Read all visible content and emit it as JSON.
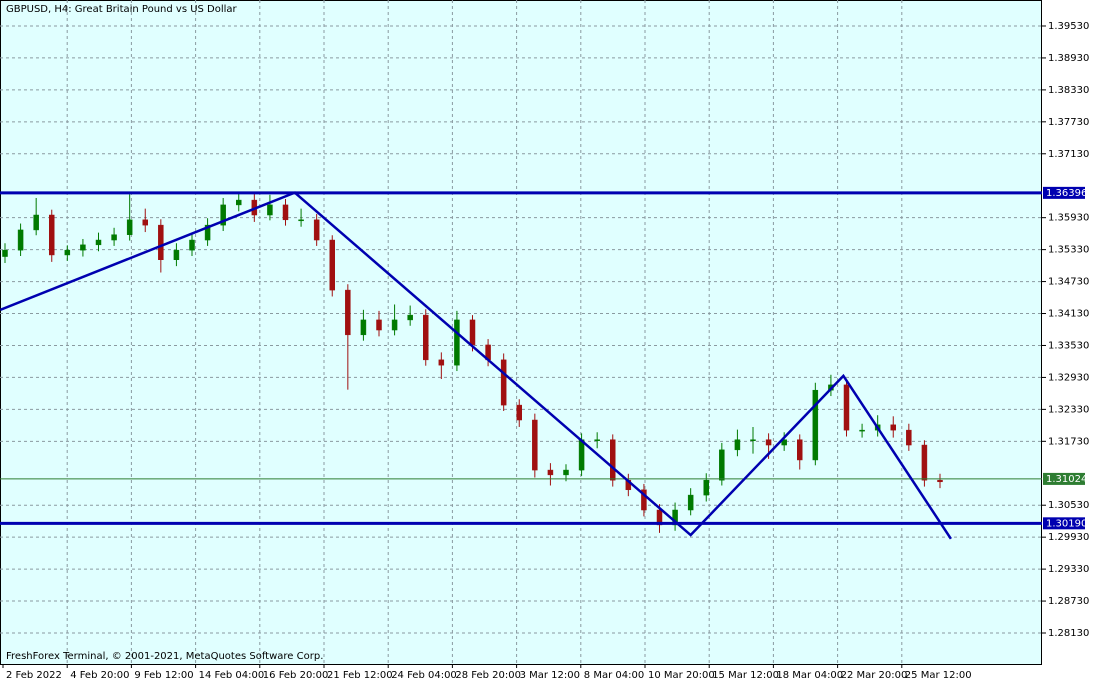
{
  "chart_data": {
    "type": "candlestick",
    "title": "GBPUSD, H4: Great Britain Pound vs US Dollar",
    "footer": "FreshForex Terminal, © 2001-2021, MetaQuotes Software Corp.",
    "background": "#e0ffff",
    "up_color": "#007a00",
    "down_color": "#a01010",
    "grid": true,
    "time_labels": [
      "2 Feb 2022",
      "4 Feb 20:00",
      "9 Feb 12:00",
      "14 Feb 04:00",
      "16 Feb 20:00",
      "21 Feb 12:00",
      "24 Feb 04:00",
      "28 Feb 20:00",
      "3 Mar 12:00",
      "8 Mar 04:00",
      "10 Mar 20:00",
      "15 Mar 12:00",
      "18 Mar 04:00",
      "22 Mar 20:00",
      "25 Mar 12:00"
    ],
    "ylim": [
      1.27548,
      1.40018
    ],
    "yticks": [
      {
        "value": 1.3953,
        "label": "1.39530"
      },
      {
        "value": 1.3893,
        "label": "1.38930"
      },
      {
        "value": 1.3833,
        "label": "1.38330"
      },
      {
        "value": 1.3773,
        "label": "1.37730"
      },
      {
        "value": 1.3713,
        "label": "1.37130"
      },
      {
        "value": 1.3593,
        "label": "1.35930"
      },
      {
        "value": 1.3533,
        "label": "1.35330"
      },
      {
        "value": 1.3473,
        "label": "1.34730"
      },
      {
        "value": 1.3413,
        "label": "1.34130"
      },
      {
        "value": 1.3353,
        "label": "1.33530"
      },
      {
        "value": 1.3293,
        "label": "1.32930"
      },
      {
        "value": 1.3233,
        "label": "1.32330"
      },
      {
        "value": 1.3173,
        "label": "1.31730"
      },
      {
        "value": 1.3053,
        "label": "1.30530"
      },
      {
        "value": 1.2993,
        "label": "1.29930"
      },
      {
        "value": 1.2933,
        "label": "1.29330"
      },
      {
        "value": 1.2873,
        "label": "1.28730"
      },
      {
        "value": 1.2813,
        "label": "1.28130"
      }
    ],
    "open": [
      1.352,
      1.3532,
      1.357,
      1.3598,
      1.3523,
      1.3532,
      1.3542,
      1.3551,
      1.3561,
      1.3589,
      1.3579,
      1.3514,
      1.3532,
      1.3551,
      1.3579,
      1.3617,
      1.3626,
      1.3598,
      1.3617,
      1.3589,
      1.3589,
      1.3551,
      1.3457,
      1.3373,
      1.3401,
      1.3382,
      1.3401,
      1.341,
      1.3326,
      1.3316,
      1.3401,
      1.3354,
      1.3326,
      1.3241,
      1.3213,
      1.3119,
      1.311,
      1.3119,
      1.3176,
      1.3176,
      1.31,
      1.3082,
      1.3044,
      1.3016,
      1.3044,
      1.3072,
      1.31,
      1.3157,
      1.3176,
      1.3176,
      1.3166,
      1.3176,
      1.3138,
      1.3269,
      1.3279,
      1.3194,
      1.3194,
      1.3204,
      1.3194,
      1.3166,
      1.31
    ],
    "high": [
      1.3545,
      1.3582,
      1.363,
      1.3608,
      1.3541,
      1.3553,
      1.3565,
      1.3574,
      1.3637,
      1.361,
      1.359,
      1.3545,
      1.3563,
      1.3592,
      1.363,
      1.3642,
      1.364,
      1.3636,
      1.3628,
      1.361,
      1.36,
      1.356,
      1.3468,
      1.342,
      1.3418,
      1.343,
      1.3428,
      1.3421,
      1.334,
      1.3418,
      1.341,
      1.3365,
      1.3338,
      1.3252,
      1.3225,
      1.3132,
      1.313,
      1.3188,
      1.319,
      1.3186,
      1.3112,
      1.3093,
      1.3055,
      1.3058,
      1.3085,
      1.3113,
      1.317,
      1.3195,
      1.32,
      1.3188,
      1.319,
      1.3186,
      1.3283,
      1.3298,
      1.3288,
      1.3206,
      1.3222,
      1.322,
      1.3206,
      1.3175,
      1.3112
    ],
    "low": [
      1.3508,
      1.3521,
      1.356,
      1.351,
      1.3512,
      1.352,
      1.353,
      1.354,
      1.355,
      1.3566,
      1.349,
      1.3502,
      1.3521,
      1.354,
      1.3568,
      1.3605,
      1.3585,
      1.3588,
      1.3578,
      1.3576,
      1.354,
      1.3445,
      1.327,
      1.3362,
      1.337,
      1.3372,
      1.339,
      1.3315,
      1.329,
      1.3305,
      1.3342,
      1.3314,
      1.323,
      1.32,
      1.3105,
      1.309,
      1.3098,
      1.3108,
      1.316,
      1.3088,
      1.307,
      1.3032,
      1.3001,
      1.3005,
      1.3034,
      1.306,
      1.309,
      1.3145,
      1.315,
      1.314,
      1.3155,
      1.312,
      1.3128,
      1.3258,
      1.3182,
      1.318,
      1.3182,
      1.318,
      1.3155,
      1.3088,
      1.3085
    ],
    "close": [
      1.3532,
      1.357,
      1.3598,
      1.3523,
      1.3532,
      1.3542,
      1.3551,
      1.3561,
      1.3589,
      1.3579,
      1.3514,
      1.3532,
      1.3551,
      1.3579,
      1.3617,
      1.3626,
      1.3598,
      1.3617,
      1.3589,
      1.3589,
      1.3551,
      1.3457,
      1.3373,
      1.3401,
      1.3382,
      1.3401,
      1.341,
      1.3326,
      1.3316,
      1.3401,
      1.3354,
      1.3326,
      1.3241,
      1.3213,
      1.3119,
      1.311,
      1.3119,
      1.3176,
      1.3176,
      1.31,
      1.3082,
      1.3044,
      1.3016,
      1.3044,
      1.3072,
      1.31,
      1.3157,
      1.3176,
      1.3176,
      1.3166,
      1.3176,
      1.3138,
      1.3269,
      1.3279,
      1.3194,
      1.3194,
      1.3204,
      1.3194,
      1.3166,
      1.31,
      1.3097
    ],
    "zigzag": {
      "color": "#0000b0",
      "x": [
        -0.3,
        18.6,
        44.0,
        53.8,
        60.7
      ],
      "y": [
        1.342,
        1.364,
        1.2997,
        1.3296,
        1.299
      ]
    },
    "levels": {
      "color": "#0000b0",
      "values": [
        1.36396,
        1.3019
      ],
      "value_labels": [
        "1.36396",
        "1.30190"
      ]
    },
    "bid": {
      "color": "#2e7d32",
      "value": 1.31024
    }
  }
}
